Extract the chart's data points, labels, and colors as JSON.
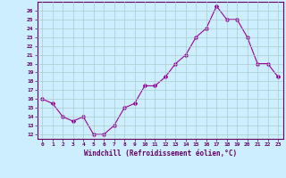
{
  "x": [
    0,
    1,
    2,
    3,
    4,
    5,
    6,
    7,
    8,
    9,
    10,
    11,
    12,
    13,
    14,
    15,
    16,
    17,
    18,
    19,
    20,
    21,
    22,
    23
  ],
  "y": [
    16,
    15.5,
    14,
    13.5,
    14,
    12,
    12,
    13,
    15,
    15.5,
    17.5,
    17.5,
    18.5,
    20,
    21,
    23,
    24,
    26.5,
    25,
    25,
    23,
    20,
    20,
    18.5
  ],
  "line_color": "#990099",
  "marker": "D",
  "marker_size": 2,
  "bg_color": "#cceeff",
  "grid_color": "#aacccc",
  "xlabel": "Windchill (Refroidissement éolien,°C)",
  "xlabel_color": "#660066",
  "ylabel_ticks": [
    12,
    13,
    14,
    15,
    16,
    17,
    18,
    19,
    20,
    21,
    22,
    23,
    24,
    25,
    26
  ],
  "ylim": [
    11.5,
    27.0
  ],
  "xlim": [
    -0.5,
    23.5
  ],
  "tick_color": "#660066",
  "tick_label_color": "#660066",
  "spine_color": "#660066"
}
